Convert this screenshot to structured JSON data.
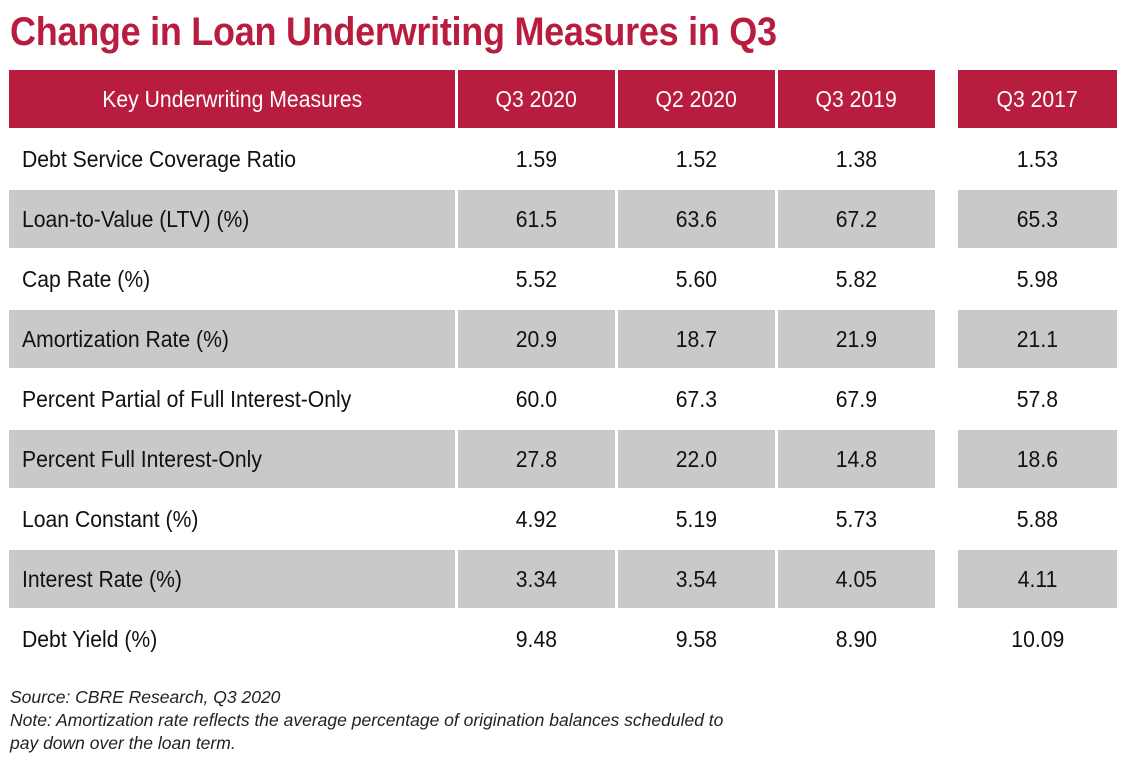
{
  "title": "Change in Loan Underwriting Measures in Q3",
  "colors": {
    "header_bg": "#b81d3f",
    "header_text": "#ffffff",
    "title": "#b81d3f",
    "shaded_row": "#c9c9c9"
  },
  "chart_data": {
    "type": "table",
    "title": "Change in Loan Underwriting Measures in Q3",
    "columns": [
      "Key Underwriting Measures",
      "Q3 2020",
      "Q2 2020",
      "Q3 2019",
      "Q3 2017"
    ],
    "rows": [
      {
        "label": "Debt Service Coverage Ratio",
        "values": [
          "1.59",
          "1.52",
          "1.38",
          "1.53"
        ]
      },
      {
        "label": "Loan-to-Value (LTV) (%)",
        "values": [
          "61.5",
          "63.6",
          "67.2",
          "65.3"
        ]
      },
      {
        "label": "Cap Rate (%)",
        "values": [
          "5.52",
          "5.60",
          "5.82",
          "5.98"
        ]
      },
      {
        "label": "Amortization Rate (%)",
        "values": [
          "20.9",
          "18.7",
          "21.9",
          "21.1"
        ]
      },
      {
        "label": "Percent Partial of Full Interest-Only",
        "values": [
          "60.0",
          "67.3",
          "67.9",
          "57.8"
        ]
      },
      {
        "label": "Percent Full Interest-Only",
        "values": [
          "27.8",
          "22.0",
          "14.8",
          "18.6"
        ]
      },
      {
        "label": "Loan Constant (%)",
        "values": [
          "4.92",
          "5.19",
          "5.73",
          "5.88"
        ]
      },
      {
        "label": "Interest Rate (%)",
        "values": [
          "3.34",
          "3.54",
          "4.05",
          "4.11"
        ]
      },
      {
        "label": "Debt Yield (%)",
        "values": [
          "9.48",
          "9.58",
          "8.90",
          "10.09"
        ]
      }
    ]
  },
  "footer": {
    "source": "Source: CBRE Research, Q3 2020",
    "note_line1": "Note: Amortization rate reflects the average percentage of origination balances scheduled to",
    "note_line2": "pay down over the loan term."
  }
}
